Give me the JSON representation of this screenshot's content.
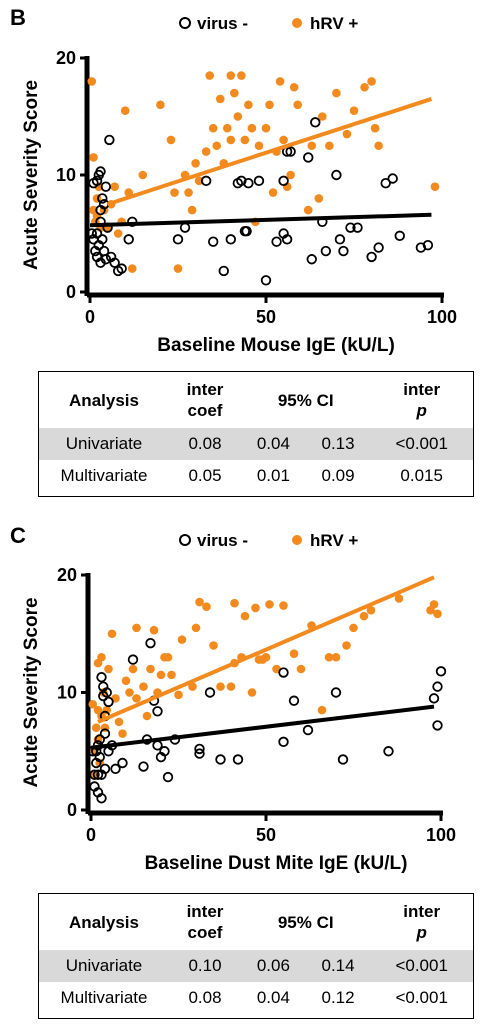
{
  "panels": [
    {
      "letter": "B",
      "legend": {
        "virus_neg": "virus -",
        "hrv_pos": "hRV +"
      },
      "colors": {
        "virus_neg": "#000000",
        "hrv_pos": "#f28a1e"
      },
      "table": {
        "headers": {
          "analysis": "Analysis",
          "coef_l1": "inter",
          "coef_l2": "coef",
          "ci": "95% CI",
          "p_l1": "inter",
          "p_l2": "p"
        },
        "rows": [
          {
            "label": "Univariate",
            "coef": "0.08",
            "ci_low": "0.04",
            "ci_high": "0.13",
            "p": "<0.001"
          },
          {
            "label": "Multivariate",
            "coef": "0.05",
            "ci_low": "0.01",
            "ci_high": "0.09",
            "p": "0.015"
          }
        ]
      }
    },
    {
      "letter": "C",
      "legend": {
        "virus_neg": "virus -",
        "hrv_pos": "hRV +"
      },
      "colors": {
        "virus_neg": "#000000",
        "hrv_pos": "#f28a1e"
      },
      "table": {
        "headers": {
          "analysis": "Analysis",
          "coef_l1": "inter",
          "coef_l2": "coef",
          "ci": "95% CI",
          "p_l1": "inter",
          "p_l2": "p"
        },
        "rows": [
          {
            "label": "Univariate",
            "coef": "0.10",
            "ci_low": "0.06",
            "ci_high": "0.14",
            "p": "<0.001"
          },
          {
            "label": "Multivariate",
            "coef": "0.08",
            "ci_low": "0.04",
            "ci_high": "0.12",
            "p": "<0.001"
          }
        ]
      }
    }
  ],
  "chart_data": [
    {
      "type": "scatter",
      "xlabel": "Baseline Mouse IgE (kU/L)",
      "ylabel": "Acute Severity Score",
      "xlim": [
        0,
        100
      ],
      "ylim": [
        0,
        20
      ],
      "xticks": [
        "0",
        "50",
        "100"
      ],
      "yticks": [
        "0",
        "10",
        "20"
      ],
      "legend": "top",
      "grid": false,
      "series": [
        {
          "name": "virus -",
          "marker": "open-circle",
          "points": [
            [
              0.5,
              5
            ],
            [
              1,
              4.5
            ],
            [
              1.5,
              3.5
            ],
            [
              2,
              3
            ],
            [
              2,
              5
            ],
            [
              2.5,
              4
            ],
            [
              3,
              6
            ],
            [
              3,
              2.5
            ],
            [
              3.5,
              4.5
            ],
            [
              4,
              3.5
            ],
            [
              4.5,
              2.8
            ],
            [
              5,
              5.5
            ],
            [
              2,
              9.5
            ],
            [
              2.5,
              10
            ],
            [
              3,
              10.3
            ],
            [
              1,
              9.3
            ],
            [
              3,
              7
            ],
            [
              3.5,
              8
            ],
            [
              4,
              7.5
            ],
            [
              4.5,
              9
            ],
            [
              5.5,
              13
            ],
            [
              6,
              3
            ],
            [
              7,
              2.5
            ],
            [
              8,
              1.8
            ],
            [
              9,
              2
            ],
            [
              11,
              4.5
            ],
            [
              12,
              6
            ],
            [
              25,
              4.5
            ],
            [
              27,
              5.5
            ],
            [
              33,
              9.5
            ],
            [
              35,
              4.3
            ],
            [
              38,
              1.8
            ],
            [
              40,
              4.5
            ],
            [
              42,
              9.3
            ],
            [
              43,
              9.5
            ],
            [
              44,
              5.2
            ],
            [
              44.5,
              5.2
            ],
            [
              45,
              9.3
            ],
            [
              48,
              9.5
            ],
            [
              50,
              1
            ],
            [
              53,
              4.3
            ],
            [
              55,
              5
            ],
            [
              55,
              9.5
            ],
            [
              56,
              4.5
            ],
            [
              56,
              12
            ],
            [
              57,
              12
            ],
            [
              62,
              11.5
            ],
            [
              63,
              2.8
            ],
            [
              64,
              14.5
            ],
            [
              66,
              6
            ],
            [
              67,
              3.5
            ],
            [
              70,
              10
            ],
            [
              71,
              4.5
            ],
            [
              72,
              3.5
            ],
            [
              74,
              5.5
            ],
            [
              76,
              5.5
            ],
            [
              80,
              3
            ],
            [
              82,
              3.8
            ],
            [
              84,
              9.3
            ],
            [
              86,
              9.7
            ],
            [
              88,
              4.8
            ],
            [
              94,
              3.8
            ],
            [
              96,
              4
            ]
          ],
          "trend": {
            "x": [
              0,
              97
            ],
            "y": [
              5.7,
              6.6
            ]
          }
        },
        {
          "name": "hRV +",
          "marker": "filled-circle",
          "points": [
            [
              0.5,
              18
            ],
            [
              1,
              11.5
            ],
            [
              1,
              7
            ],
            [
              1.5,
              6
            ],
            [
              2,
              6.5
            ],
            [
              2,
              8
            ],
            [
              2.5,
              9
            ],
            [
              3,
              5.5
            ],
            [
              4,
              7
            ],
            [
              5,
              5.5
            ],
            [
              6,
              7.5
            ],
            [
              7,
              9
            ],
            [
              8,
              5
            ],
            [
              9,
              6
            ],
            [
              10,
              15.5
            ],
            [
              11,
              8.5
            ],
            [
              12,
              2
            ],
            [
              15,
              10
            ],
            [
              20,
              16
            ],
            [
              23,
              13
            ],
            [
              24,
              8.5
            ],
            [
              25,
              2
            ],
            [
              27,
              10
            ],
            [
              28,
              8.5
            ],
            [
              29,
              7
            ],
            [
              30,
              11
            ],
            [
              31,
              9.5
            ],
            [
              33,
              12
            ],
            [
              34,
              18.5
            ],
            [
              35,
              14
            ],
            [
              36,
              12.5
            ],
            [
              37,
              16.5
            ],
            [
              38,
              11
            ],
            [
              39,
              14
            ],
            [
              40,
              13
            ],
            [
              40,
              18.5
            ],
            [
              41,
              17
            ],
            [
              42,
              15
            ],
            [
              43,
              18.5
            ],
            [
              44,
              13
            ],
            [
              45,
              16
            ],
            [
              46,
              14
            ],
            [
              47,
              6
            ],
            [
              48,
              12.5
            ],
            [
              50,
              14
            ],
            [
              51,
              16
            ],
            [
              52,
              8.5
            ],
            [
              53,
              12
            ],
            [
              54,
              18
            ],
            [
              55,
              13
            ],
            [
              56,
              9
            ],
            [
              57,
              10
            ],
            [
              58,
              17.5
            ],
            [
              59,
              16
            ],
            [
              62,
              7
            ],
            [
              63,
              12.5
            ],
            [
              65,
              8
            ],
            [
              66,
              15
            ],
            [
              68,
              12.5
            ],
            [
              70,
              17
            ],
            [
              73,
              13.5
            ],
            [
              75,
              15.5
            ],
            [
              78,
              17.5
            ],
            [
              80,
              18
            ],
            [
              81,
              14
            ],
            [
              82,
              12.5
            ],
            [
              98,
              9
            ]
          ],
          "trend": {
            "x": [
              5,
              97
            ],
            "y": [
              7.5,
              16.5
            ]
          }
        }
      ]
    },
    {
      "type": "scatter",
      "xlabel": "Baseline Dust Mite IgE (kU/L)",
      "ylabel": "Acute Severity Score",
      "xlim": [
        0,
        100
      ],
      "ylim": [
        0,
        20
      ],
      "xticks": [
        "0",
        "50",
        "100"
      ],
      "yticks": [
        "0",
        "10",
        "20"
      ],
      "legend": "top",
      "grid": false,
      "series": [
        {
          "name": "virus -",
          "marker": "open-circle",
          "points": [
            [
              0.5,
              5
            ],
            [
              1,
              3
            ],
            [
              1,
              2
            ],
            [
              1.5,
              4
            ],
            [
              1.5,
              5
            ],
            [
              2,
              3
            ],
            [
              2,
              1.5
            ],
            [
              2,
              5.5
            ],
            [
              2.5,
              4.5
            ],
            [
              2.5,
              6
            ],
            [
              3,
              3
            ],
            [
              3,
              1
            ],
            [
              3,
              11.3
            ],
            [
              3.5,
              9.7
            ],
            [
              3.5,
              10.5
            ],
            [
              4,
              3.5
            ],
            [
              4,
              6.5
            ],
            [
              4,
              8
            ],
            [
              4.5,
              10
            ],
            [
              5,
              9.2
            ],
            [
              5,
              5
            ],
            [
              6,
              5.5
            ],
            [
              7,
              3.5
            ],
            [
              9,
              4
            ],
            [
              12,
              12.8
            ],
            [
              15,
              3.7
            ],
            [
              16,
              6
            ],
            [
              17,
              14.2
            ],
            [
              18,
              9.3
            ],
            [
              19,
              8.4
            ],
            [
              19,
              5.5
            ],
            [
              20,
              4.5
            ],
            [
              21,
              5
            ],
            [
              22,
              2.8
            ],
            [
              24,
              6
            ],
            [
              31,
              4.8
            ],
            [
              31,
              5.2
            ],
            [
              34,
              10
            ],
            [
              37,
              4.3
            ],
            [
              42,
              4.3
            ],
            [
              55,
              5.8
            ],
            [
              55,
              11.7
            ],
            [
              58,
              9.3
            ],
            [
              62,
              6.8
            ],
            [
              70,
              10
            ],
            [
              72,
              4.3
            ],
            [
              85,
              5
            ],
            [
              98,
              9.5
            ],
            [
              99,
              7.2
            ],
            [
              99,
              10.5
            ],
            [
              100,
              11.8
            ]
          ],
          "trend": {
            "x": [
              0,
              98
            ],
            "y": [
              5.3,
              8.8
            ]
          }
        },
        {
          "name": "hRV +",
          "marker": "filled-circle",
          "points": [
            [
              0.5,
              9
            ],
            [
              1,
              5
            ],
            [
              1,
              3
            ],
            [
              1.5,
              7
            ],
            [
              2,
              6
            ],
            [
              2,
              8.5
            ],
            [
              2,
              12.5
            ],
            [
              2.5,
              4
            ],
            [
              3,
              8
            ],
            [
              3,
              13
            ],
            [
              3.5,
              10
            ],
            [
              4,
              7
            ],
            [
              4.5,
              8.5
            ],
            [
              5,
              12
            ],
            [
              6,
              15
            ],
            [
              7,
              9.5
            ],
            [
              8,
              7.5
            ],
            [
              9,
              6.5
            ],
            [
              10,
              11
            ],
            [
              11,
              10
            ],
            [
              12,
              12
            ],
            [
              13,
              9.5
            ],
            [
              13,
              15.5
            ],
            [
              15,
              10.5
            ],
            [
              16,
              8
            ],
            [
              17,
              12
            ],
            [
              18,
              15.3
            ],
            [
              19,
              10
            ],
            [
              20,
              11.5
            ],
            [
              21,
              13
            ],
            [
              22,
              13
            ],
            [
              23,
              11.5
            ],
            [
              25,
              9.8
            ],
            [
              26,
              14.5
            ],
            [
              29,
              10.5
            ],
            [
              30,
              15.5
            ],
            [
              31,
              17.7
            ],
            [
              33,
              17.3
            ],
            [
              35,
              14
            ],
            [
              37,
              10.5
            ],
            [
              40,
              10.5
            ],
            [
              41,
              12.5
            ],
            [
              41,
              17.6
            ],
            [
              43,
              13
            ],
            [
              44,
              16.5
            ],
            [
              46,
              10
            ],
            [
              47,
              17.2
            ],
            [
              48,
              12.8
            ],
            [
              49,
              12.8
            ],
            [
              50,
              13
            ],
            [
              51,
              17.5
            ],
            [
              53,
              12
            ],
            [
              55,
              17.4
            ],
            [
              58,
              13.3
            ],
            [
              60,
              12
            ],
            [
              63,
              15.7
            ],
            [
              66,
              8.5
            ],
            [
              68,
              13
            ],
            [
              70,
              13
            ],
            [
              73,
              14
            ],
            [
              75,
              15.5
            ],
            [
              78,
              16.5
            ],
            [
              80,
              17
            ],
            [
              88,
              18
            ],
            [
              97,
              17
            ],
            [
              98,
              17.5
            ],
            [
              99,
              16.7
            ]
          ],
          "trend": {
            "x": [
              2,
              98
            ],
            "y": [
              7.5,
              19.8
            ]
          }
        }
      ]
    }
  ]
}
